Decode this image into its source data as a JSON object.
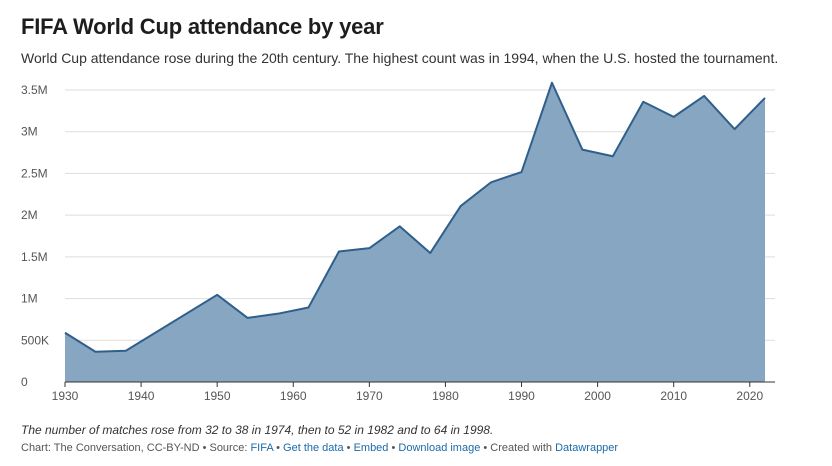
{
  "title": "FIFA World Cup attendance by year",
  "subtitle": "World Cup attendance rose during the 20th century. The highest count was in 1994, when the U.S. hosted the tournament.",
  "note": "The number of matches rose from 32 to 38 in 1974, then to 52 in 1982 and to 64 in 1998.",
  "footer": {
    "chart_credit": "Chart: The Conversation, CC-BY-ND",
    "sep1": " • Source: ",
    "source_link": "FIFA",
    "sep2": " • ",
    "get_data": "Get the data",
    "sep3": " • ",
    "embed": "Embed",
    "sep4": "  • ",
    "download": "Download image",
    "sep5": " • Created with ",
    "datawrapper": "Datawrapper"
  },
  "colors": {
    "area_fill": "#86a6c2",
    "line": "#2f5f8a",
    "grid": "#dddddd",
    "axis": "#333333"
  },
  "chart_data": {
    "type": "area",
    "title": "FIFA World Cup attendance by year",
    "xlabel": "",
    "ylabel": "",
    "xlim": [
      1930,
      2022
    ],
    "ylim": [
      0,
      3500000
    ],
    "grid": true,
    "x_ticks": [
      1930,
      1940,
      1950,
      1960,
      1970,
      1980,
      1990,
      2000,
      2010,
      2020
    ],
    "y_ticks": [
      {
        "value": 0,
        "label": "0"
      },
      {
        "value": 500000,
        "label": "500K"
      },
      {
        "value": 1000000,
        "label": "1M"
      },
      {
        "value": 1500000,
        "label": "1.5M"
      },
      {
        "value": 2000000,
        "label": "2M"
      },
      {
        "value": 2500000,
        "label": "2.5M"
      },
      {
        "value": 3000000,
        "label": "3M"
      },
      {
        "value": 3500000,
        "label": "3.5M"
      }
    ],
    "x": [
      1930,
      1934,
      1938,
      1950,
      1954,
      1958,
      1962,
      1966,
      1970,
      1974,
      1978,
      1982,
      1986,
      1990,
      1994,
      1998,
      2002,
      2006,
      2010,
      2014,
      2018,
      2022
    ],
    "series": [
      {
        "values": [
          590000,
          363000,
          375000,
          1045000,
          768000,
          819000,
          893000,
          1564000,
          1604000,
          1866000,
          1546000,
          2109000,
          2394000,
          2517000,
          3587000,
          2785000,
          2706000,
          3359000,
          3178000,
          3429000,
          3031000,
          3405000
        ]
      }
    ]
  }
}
